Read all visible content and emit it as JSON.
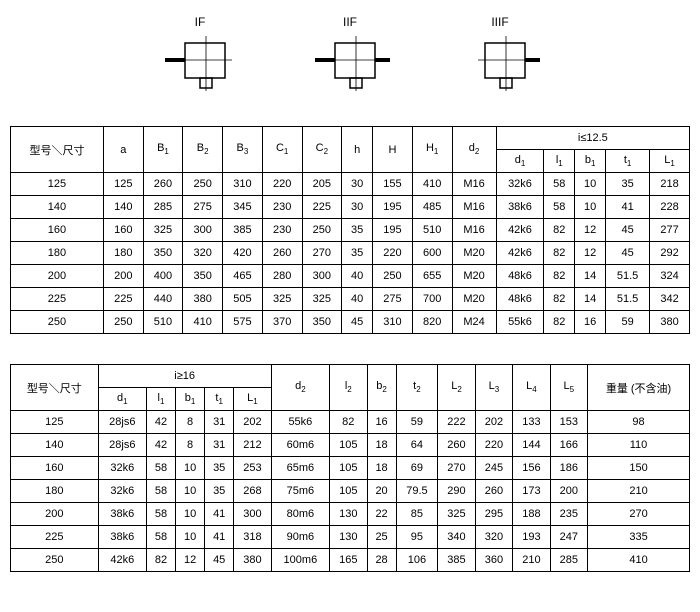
{
  "diagrams": {
    "labels": [
      "IF",
      "IIF",
      "IIIF"
    ]
  },
  "table1": {
    "header_model": "型号＼尺寸",
    "header_group": "i≤12.5",
    "cols_main": [
      "a",
      "B1",
      "B2",
      "B3",
      "C1",
      "C2",
      "h",
      "H",
      "H1",
      "d2"
    ],
    "cols_group": [
      "d1",
      "l1",
      "b1",
      "t1",
      "L1"
    ],
    "rows": [
      [
        "125",
        "125",
        "260",
        "250",
        "310",
        "220",
        "205",
        "30",
        "155",
        "410",
        "M16",
        "32k6",
        "58",
        "10",
        "35",
        "218"
      ],
      [
        "140",
        "140",
        "285",
        "275",
        "345",
        "230",
        "225",
        "30",
        "195",
        "485",
        "M16",
        "38k6",
        "58",
        "10",
        "41",
        "228"
      ],
      [
        "160",
        "160",
        "325",
        "300",
        "385",
        "230",
        "250",
        "35",
        "195",
        "510",
        "M16",
        "42k6",
        "82",
        "12",
        "45",
        "277"
      ],
      [
        "180",
        "180",
        "350",
        "320",
        "420",
        "260",
        "270",
        "35",
        "220",
        "600",
        "M20",
        "42k6",
        "82",
        "12",
        "45",
        "292"
      ],
      [
        "200",
        "200",
        "400",
        "350",
        "465",
        "280",
        "300",
        "40",
        "250",
        "655",
        "M20",
        "48k6",
        "82",
        "14",
        "51.5",
        "324"
      ],
      [
        "225",
        "225",
        "440",
        "380",
        "505",
        "325",
        "325",
        "40",
        "275",
        "700",
        "M20",
        "48k6",
        "82",
        "14",
        "51.5",
        "342"
      ],
      [
        "250",
        "250",
        "510",
        "410",
        "575",
        "370",
        "350",
        "45",
        "310",
        "820",
        "M24",
        "55k6",
        "82",
        "16",
        "59",
        "380"
      ]
    ]
  },
  "table2": {
    "header_model": "型号＼尺寸",
    "header_group": "i≥16",
    "header_weight": "重量 (不含油)",
    "cols_group": [
      "d1",
      "l1",
      "b1",
      "t1",
      "L1"
    ],
    "cols_main": [
      "d2",
      "l2",
      "b2",
      "t2",
      "L2",
      "L3",
      "L4",
      "L5"
    ],
    "rows": [
      [
        "125",
        "28js6",
        "42",
        "8",
        "31",
        "202",
        "55k6",
        "82",
        "16",
        "59",
        "222",
        "202",
        "133",
        "153",
        "98"
      ],
      [
        "140",
        "28js6",
        "42",
        "8",
        "31",
        "212",
        "60m6",
        "105",
        "18",
        "64",
        "260",
        "220",
        "144",
        "166",
        "110"
      ],
      [
        "160",
        "32k6",
        "58",
        "10",
        "35",
        "253",
        "65m6",
        "105",
        "18",
        "69",
        "270",
        "245",
        "156",
        "186",
        "150"
      ],
      [
        "180",
        "32k6",
        "58",
        "10",
        "35",
        "268",
        "75m6",
        "105",
        "20",
        "79.5",
        "290",
        "260",
        "173",
        "200",
        "210"
      ],
      [
        "200",
        "38k6",
        "58",
        "10",
        "41",
        "300",
        "80m6",
        "130",
        "22",
        "85",
        "325",
        "295",
        "188",
        "235",
        "270"
      ],
      [
        "225",
        "38k6",
        "58",
        "10",
        "41",
        "318",
        "90m6",
        "130",
        "25",
        "95",
        "340",
        "320",
        "193",
        "247",
        "335"
      ],
      [
        "250",
        "42k6",
        "82",
        "12",
        "45",
        "380",
        "100m6",
        "165",
        "28",
        "106",
        "385",
        "360",
        "210",
        "285",
        "410"
      ]
    ]
  }
}
